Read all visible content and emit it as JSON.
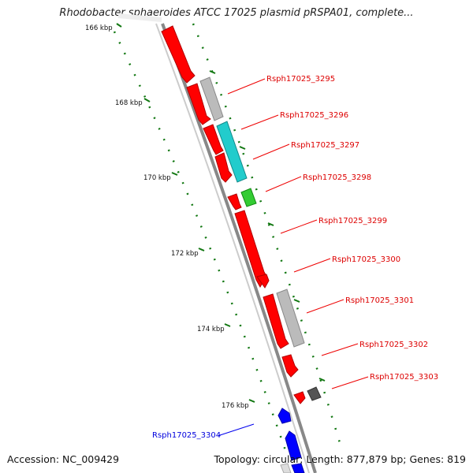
{
  "title": "Rhodobacter sphaeroides ATCC 17025 plasmid pRSPA01, complete...",
  "footer": {
    "accession": "Accession: NC_009429",
    "summary": "Topology: circular; Length: 877,879 bp; Genes: 819"
  },
  "colors": {
    "forward_cds": "#ff0000",
    "reverse_cds": "#0000ff",
    "other_gray": "#bbbbbb",
    "other_cyan": "#22cccc",
    "other_green": "#33cc33",
    "other_darkgray": "#555555",
    "backbone": "#888888",
    "tick": "#117711"
  },
  "ticks": [
    {
      "label": "166 kbp"
    },
    {
      "label": "168 kbp"
    },
    {
      "label": "170 kbp"
    },
    {
      "label": "172 kbp"
    },
    {
      "label": "174 kbp"
    },
    {
      "label": "176 kbp"
    }
  ],
  "genes": [
    {
      "label": "Rsph17025_3295",
      "strand": "forward"
    },
    {
      "label": "Rsph17025_3296",
      "strand": "forward"
    },
    {
      "label": "Rsph17025_3297",
      "strand": "forward"
    },
    {
      "label": "Rsph17025_3298",
      "strand": "forward"
    },
    {
      "label": "Rsph17025_3299",
      "strand": "forward"
    },
    {
      "label": "Rsph17025_3300",
      "strand": "forward"
    },
    {
      "label": "Rsph17025_3301",
      "strand": "forward"
    },
    {
      "label": "Rsph17025_3302",
      "strand": "forward"
    },
    {
      "label": "Rsph17025_3303",
      "strand": "forward"
    },
    {
      "label": "Rsph17025_3304",
      "strand": "reverse"
    }
  ]
}
